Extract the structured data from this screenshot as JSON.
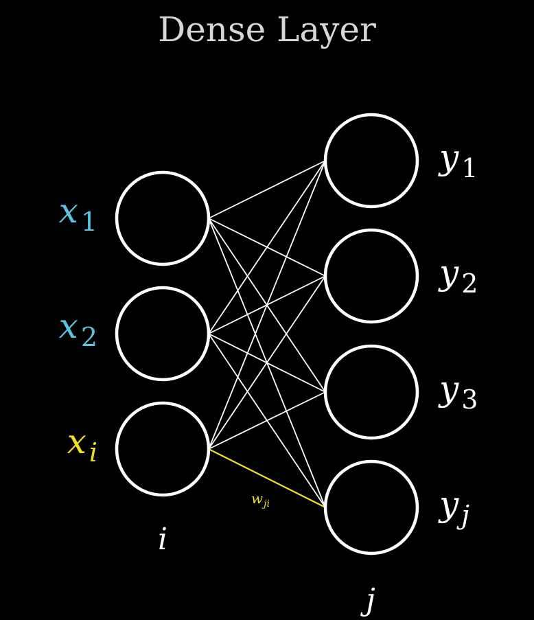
{
  "title": "Dense Layer",
  "colors": {
    "background": "#000000",
    "title": "#d6d6d6",
    "neuron_stroke": "#ffffff",
    "edge": "#ffffff",
    "input_label": "#58c4dd",
    "highlight": "#f0e020"
  },
  "input_layer": {
    "index_label": "i",
    "neurons": [
      {
        "var": "x",
        "sub": "1",
        "color": "#58c4dd"
      },
      {
        "var": "x",
        "sub": "2",
        "color": "#58c4dd"
      },
      {
        "var": "x",
        "sub": "i",
        "color": "#f0e020"
      }
    ]
  },
  "output_layer": {
    "index_label": "j",
    "neurons": [
      {
        "var": "y",
        "sub": "1",
        "color": "#ffffff"
      },
      {
        "var": "y",
        "sub": "2",
        "color": "#ffffff"
      },
      {
        "var": "y",
        "sub": "3",
        "color": "#ffffff"
      },
      {
        "var": "y",
        "sub": "j",
        "color": "#ffffff"
      }
    ]
  },
  "highlighted_edge": {
    "from_input": 3,
    "to_output": 4,
    "weight_var": "w",
    "weight_sub": "ji"
  }
}
